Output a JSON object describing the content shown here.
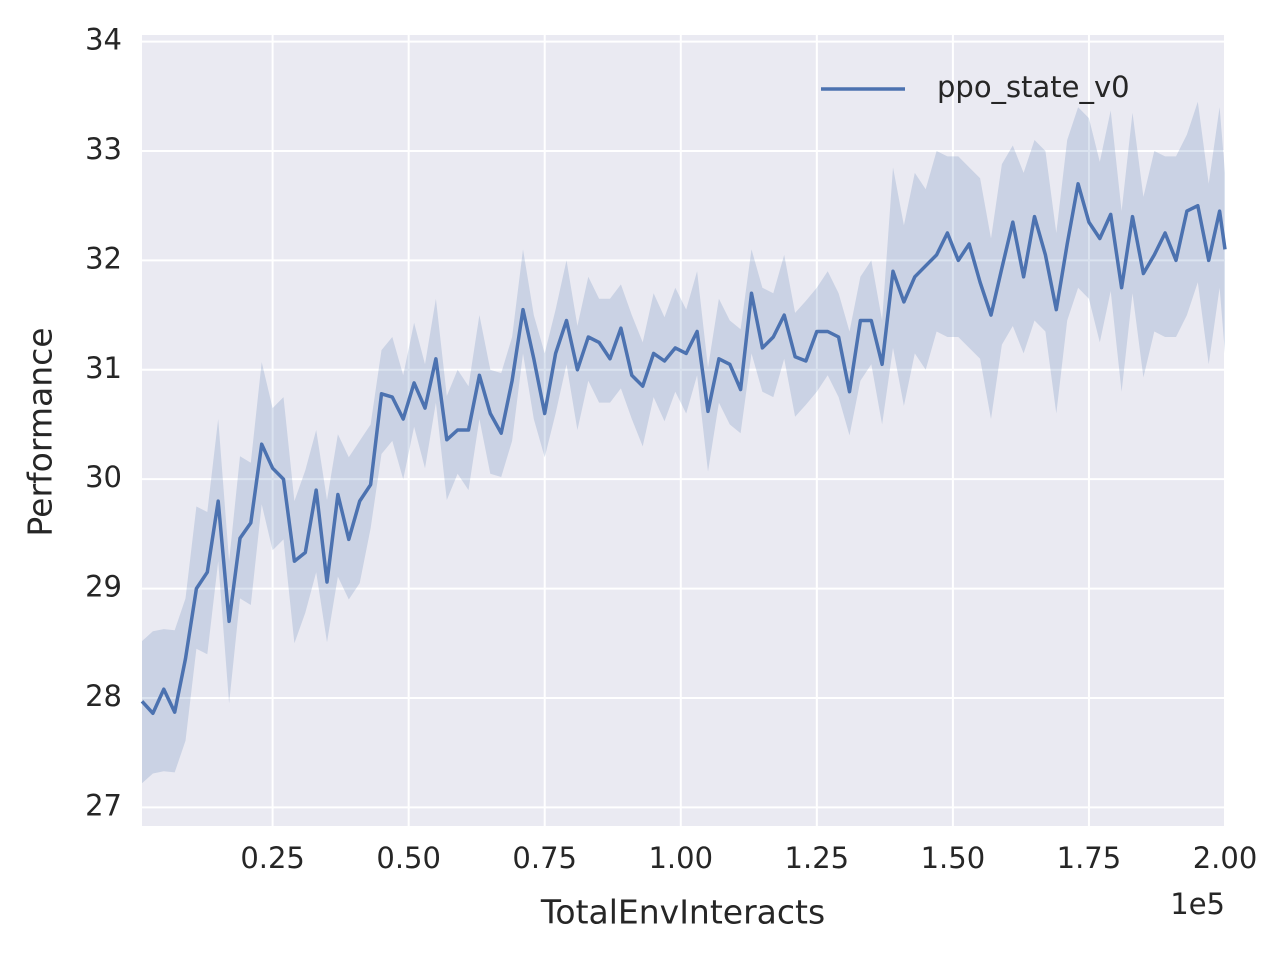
{
  "chart_data": {
    "type": "line",
    "xlabel": "TotalEnvInteracts",
    "ylabel": "Performance",
    "x_offset_label": "1e5",
    "x": [
      1000,
      3000,
      5000,
      7000,
      9000,
      11000,
      13000,
      15000,
      17000,
      19000,
      21000,
      23000,
      25000,
      27000,
      29000,
      31000,
      33000,
      35000,
      37000,
      39000,
      41000,
      43000,
      45000,
      47000,
      49000,
      51000,
      53000,
      55000,
      57000,
      59000,
      61000,
      63000,
      65000,
      67000,
      69000,
      71000,
      73000,
      75000,
      77000,
      79000,
      81000,
      83000,
      85000,
      87000,
      89000,
      91000,
      93000,
      95000,
      97000,
      99000,
      101000,
      103000,
      105000,
      107000,
      109000,
      111000,
      113000,
      115000,
      117000,
      119000,
      121000,
      123000,
      125000,
      127000,
      129000,
      131000,
      133000,
      135000,
      137000,
      139000,
      141000,
      143000,
      145000,
      147000,
      149000,
      151000,
      153000,
      155000,
      157000,
      159000,
      161000,
      163000,
      165000,
      167000,
      169000,
      171000,
      173000,
      175000,
      177000,
      179000,
      181000,
      183000,
      185000,
      187000,
      189000,
      191000,
      193000,
      195000,
      197000,
      199000,
      200000
    ],
    "series": [
      {
        "name": "ppo_state_v0",
        "color": "#4c72b0",
        "values": [
          27.97,
          27.86,
          28.08,
          27.87,
          28.36,
          29.0,
          29.15,
          29.8,
          28.7,
          29.46,
          29.6,
          30.32,
          30.1,
          30.0,
          29.25,
          29.33,
          29.9,
          29.06,
          29.86,
          29.45,
          29.8,
          29.95,
          30.78,
          30.75,
          30.55,
          30.88,
          30.65,
          31.1,
          30.36,
          30.45,
          30.45,
          30.95,
          30.6,
          30.42,
          30.9,
          31.55,
          31.1,
          30.6,
          31.15,
          31.45,
          31.0,
          31.3,
          31.25,
          31.1,
          31.38,
          30.95,
          30.85,
          31.15,
          31.08,
          31.2,
          31.15,
          31.35,
          30.62,
          31.1,
          31.05,
          30.82,
          31.7,
          31.2,
          31.3,
          31.5,
          31.12,
          31.08,
          31.35,
          31.35,
          31.3,
          30.8,
          31.45,
          31.45,
          31.05,
          31.9,
          31.62,
          31.85,
          31.95,
          32.05,
          32.25,
          32.0,
          32.15,
          31.8,
          31.5,
          31.93,
          32.35,
          31.85,
          32.4,
          32.05,
          31.55,
          32.15,
          32.7,
          32.35,
          32.2,
          32.42,
          31.75,
          32.4,
          31.88,
          32.05,
          32.25,
          32.0,
          32.45,
          32.5,
          32.0,
          32.45,
          32.1
        ],
        "upper": [
          28.52,
          28.61,
          28.63,
          28.62,
          28.91,
          29.75,
          29.7,
          30.55,
          29.25,
          30.21,
          30.15,
          31.07,
          30.65,
          30.75,
          29.8,
          30.08,
          30.45,
          29.81,
          30.41,
          30.2,
          30.35,
          30.5,
          31.18,
          31.3,
          30.95,
          31.43,
          31.05,
          31.65,
          30.76,
          31.0,
          30.85,
          31.5,
          31.0,
          30.97,
          31.3,
          32.1,
          31.5,
          31.15,
          31.55,
          32.0,
          31.4,
          31.85,
          31.65,
          31.65,
          31.78,
          31.5,
          31.25,
          31.7,
          31.48,
          31.75,
          31.55,
          31.9,
          31.02,
          31.65,
          31.45,
          31.37,
          32.1,
          31.75,
          31.7,
          32.05,
          31.52,
          31.63,
          31.75,
          31.9,
          31.7,
          31.35,
          31.85,
          32.0,
          31.45,
          32.85,
          32.32,
          32.8,
          32.65,
          33.0,
          32.95,
          32.95,
          32.85,
          32.75,
          32.2,
          32.88,
          33.05,
          32.8,
          33.1,
          33.0,
          32.25,
          33.1,
          33.4,
          33.3,
          32.9,
          33.37,
          32.45,
          33.35,
          32.58,
          33.0,
          32.95,
          32.95,
          33.15,
          33.45,
          32.7,
          33.4,
          32.8
        ],
        "lower": [
          27.22,
          27.31,
          27.33,
          27.32,
          27.61,
          28.45,
          28.4,
          29.25,
          27.95,
          28.91,
          28.85,
          29.77,
          29.35,
          29.45,
          28.5,
          28.78,
          29.15,
          28.51,
          29.11,
          28.9,
          29.05,
          29.55,
          30.23,
          30.35,
          30.0,
          30.48,
          30.1,
          30.7,
          29.81,
          30.05,
          29.9,
          30.55,
          30.05,
          30.02,
          30.35,
          31.15,
          30.55,
          30.2,
          30.6,
          31.05,
          30.45,
          30.9,
          30.7,
          30.7,
          30.83,
          30.55,
          30.3,
          30.75,
          30.53,
          30.8,
          30.6,
          30.95,
          30.07,
          30.7,
          30.5,
          30.42,
          31.15,
          30.8,
          30.75,
          31.1,
          30.57,
          30.68,
          30.8,
          30.95,
          30.75,
          30.4,
          30.9,
          31.05,
          30.5,
          31.2,
          30.67,
          31.15,
          31.0,
          31.35,
          31.3,
          31.3,
          31.2,
          31.1,
          30.55,
          31.23,
          31.4,
          31.15,
          31.45,
          31.35,
          30.6,
          31.45,
          31.75,
          31.65,
          31.25,
          31.72,
          30.8,
          31.7,
          30.93,
          31.35,
          31.3,
          31.3,
          31.5,
          31.8,
          31.05,
          31.75,
          31.15
        ]
      }
    ],
    "xlim": [
      1000,
      200000
    ],
    "xticks": [
      {
        "value": 25000,
        "label": "0.25"
      },
      {
        "value": 50000,
        "label": "0.50"
      },
      {
        "value": 75000,
        "label": "0.75"
      },
      {
        "value": 100000,
        "label": "1.00"
      },
      {
        "value": 125000,
        "label": "1.25"
      },
      {
        "value": 150000,
        "label": "1.50"
      },
      {
        "value": 175000,
        "label": "1.75"
      },
      {
        "value": 200000,
        "label": "2.00"
      }
    ],
    "ylim": [
      26.83,
      34.06
    ],
    "yticks": [
      27,
      28,
      29,
      30,
      31,
      32,
      33,
      34
    ],
    "grid": true,
    "legend": "upper-right"
  }
}
